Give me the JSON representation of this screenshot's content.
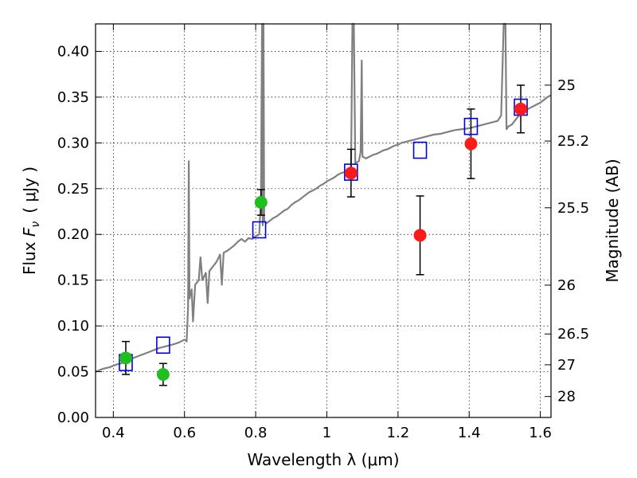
{
  "chart_data": {
    "type": "scatter",
    "xlabel": "Wavelength  λ (μm)",
    "ylabel_left": {
      "prefix": "Flux ",
      "symbol": "F",
      "subscript": "ν",
      "units": "( μJy )"
    },
    "ylabel_right": "Magnitude (AB)",
    "xlim": [
      0.35,
      1.63
    ],
    "ylim": [
      0.0,
      0.43
    ],
    "grid": true,
    "grid_style": "dotted",
    "x_ticks": [
      {
        "value": 0.4,
        "label": "0.4"
      },
      {
        "value": 0.6,
        "label": "0.6"
      },
      {
        "value": 0.8,
        "label": "0.8"
      },
      {
        "value": 1.0,
        "label": "1"
      },
      {
        "value": 1.2,
        "label": "1.2"
      },
      {
        "value": 1.4,
        "label": "1.4"
      },
      {
        "value": 1.6,
        "label": "1.6"
      }
    ],
    "y_ticks": [
      {
        "value": 0.0,
        "label": "0.00"
      },
      {
        "value": 0.05,
        "label": "0.05"
      },
      {
        "value": 0.1,
        "label": "0.10"
      },
      {
        "value": 0.15,
        "label": "0.15"
      },
      {
        "value": 0.2,
        "label": "0.20"
      },
      {
        "value": 0.25,
        "label": "0.25"
      },
      {
        "value": 0.3,
        "label": "0.30"
      },
      {
        "value": 0.35,
        "label": "0.35"
      },
      {
        "value": 0.4,
        "label": "0.40"
      }
    ],
    "right_ticks": [
      {
        "mag": 25,
        "label": "25"
      },
      {
        "mag": 25.2,
        "label": "25.2"
      },
      {
        "mag": 25.5,
        "label": "25.5"
      },
      {
        "mag": 26,
        "label": "26"
      },
      {
        "mag": 26.5,
        "label": "26.5"
      },
      {
        "mag": 27,
        "label": "27"
      },
      {
        "mag": 28,
        "label": "28"
      }
    ],
    "model_spectrum": {
      "name": "model SED",
      "color": "#808080",
      "points": [
        [
          0.35,
          0.05
        ],
        [
          0.37,
          0.053
        ],
        [
          0.39,
          0.055
        ],
        [
          0.41,
          0.058
        ],
        [
          0.43,
          0.06
        ],
        [
          0.45,
          0.064
        ],
        [
          0.47,
          0.067
        ],
        [
          0.49,
          0.07
        ],
        [
          0.51,
          0.073
        ],
        [
          0.53,
          0.076
        ],
        [
          0.55,
          0.078
        ],
        [
          0.57,
          0.08
        ],
        [
          0.585,
          0.082
        ],
        [
          0.6,
          0.085
        ],
        [
          0.606,
          0.083
        ],
        [
          0.61,
          0.12
        ],
        [
          0.612,
          0.28
        ],
        [
          0.614,
          0.13
        ],
        [
          0.62,
          0.14
        ],
        [
          0.624,
          0.105
        ],
        [
          0.63,
          0.145
        ],
        [
          0.64,
          0.15
        ],
        [
          0.645,
          0.175
        ],
        [
          0.65,
          0.15
        ],
        [
          0.66,
          0.158
        ],
        [
          0.665,
          0.125
        ],
        [
          0.67,
          0.16
        ],
        [
          0.68,
          0.165
        ],
        [
          0.69,
          0.17
        ],
        [
          0.7,
          0.178
        ],
        [
          0.705,
          0.145
        ],
        [
          0.71,
          0.18
        ],
        [
          0.72,
          0.182
        ],
        [
          0.73,
          0.185
        ],
        [
          0.74,
          0.188
        ],
        [
          0.75,
          0.192
        ],
        [
          0.76,
          0.195
        ],
        [
          0.77,
          0.192
        ],
        [
          0.78,
          0.196
        ],
        [
          0.79,
          0.195
        ],
        [
          0.8,
          0.198
        ],
        [
          0.81,
          0.2
        ],
        [
          0.815,
          0.245
        ],
        [
          0.818,
          0.43
        ],
        [
          0.82,
          0.21
        ],
        [
          0.822,
          0.43
        ],
        [
          0.824,
          0.215
        ],
        [
          0.83,
          0.212
        ],
        [
          0.84,
          0.215
        ],
        [
          0.85,
          0.218
        ],
        [
          0.86,
          0.22
        ],
        [
          0.87,
          0.223
        ],
        [
          0.88,
          0.226
        ],
        [
          0.89,
          0.228
        ],
        [
          0.9,
          0.232
        ],
        [
          0.91,
          0.235
        ],
        [
          0.92,
          0.237
        ],
        [
          0.93,
          0.24
        ],
        [
          0.94,
          0.243
        ],
        [
          0.95,
          0.246
        ],
        [
          0.96,
          0.248
        ],
        [
          0.97,
          0.25
        ],
        [
          0.98,
          0.253
        ],
        [
          0.99,
          0.255
        ],
        [
          1.0,
          0.258
        ],
        [
          1.01,
          0.26
        ],
        [
          1.02,
          0.262
        ],
        [
          1.03,
          0.265
        ],
        [
          1.04,
          0.267
        ],
        [
          1.05,
          0.268
        ],
        [
          1.06,
          0.27
        ],
        [
          1.068,
          0.272
        ],
        [
          1.072,
          0.43
        ],
        [
          1.076,
          0.43
        ],
        [
          1.08,
          0.278
        ],
        [
          1.09,
          0.28
        ],
        [
          1.095,
          0.29
        ],
        [
          1.098,
          0.39
        ],
        [
          1.1,
          0.285
        ],
        [
          1.11,
          0.283
        ],
        [
          1.12,
          0.285
        ],
        [
          1.13,
          0.287
        ],
        [
          1.14,
          0.288
        ],
        [
          1.15,
          0.29
        ],
        [
          1.16,
          0.292
        ],
        [
          1.17,
          0.293
        ],
        [
          1.18,
          0.295
        ],
        [
          1.19,
          0.297
        ],
        [
          1.2,
          0.298
        ],
        [
          1.21,
          0.3
        ],
        [
          1.22,
          0.301
        ],
        [
          1.23,
          0.302
        ],
        [
          1.24,
          0.303
        ],
        [
          1.25,
          0.304
        ],
        [
          1.26,
          0.305
        ],
        [
          1.28,
          0.307
        ],
        [
          1.3,
          0.309
        ],
        [
          1.32,
          0.31
        ],
        [
          1.34,
          0.312
        ],
        [
          1.36,
          0.314
        ],
        [
          1.38,
          0.315
        ],
        [
          1.4,
          0.316
        ],
        [
          1.42,
          0.318
        ],
        [
          1.44,
          0.32
        ],
        [
          1.46,
          0.322
        ],
        [
          1.48,
          0.324
        ],
        [
          1.49,
          0.33
        ],
        [
          1.497,
          0.43
        ],
        [
          1.502,
          0.43
        ],
        [
          1.505,
          0.315
        ],
        [
          1.51,
          0.318
        ],
        [
          1.52,
          0.32
        ],
        [
          1.53,
          0.325
        ],
        [
          1.54,
          0.33
        ],
        [
          1.55,
          0.333
        ],
        [
          1.56,
          0.336
        ],
        [
          1.57,
          0.338
        ],
        [
          1.58,
          0.34
        ],
        [
          1.59,
          0.342
        ],
        [
          1.6,
          0.344
        ],
        [
          1.61,
          0.347
        ],
        [
          1.62,
          0.35
        ],
        [
          1.63,
          0.352
        ]
      ]
    },
    "series": [
      {
        "name": "green circles",
        "marker": "circle",
        "color": "#1fbf1f",
        "points": [
          {
            "x": 0.435,
            "y": 0.065,
            "err": 0.018
          },
          {
            "x": 0.54,
            "y": 0.047,
            "err": 0.012
          },
          {
            "x": 0.815,
            "y": 0.235,
            "err": 0.014
          }
        ]
      },
      {
        "name": "red circles",
        "marker": "circle",
        "color": "#ff1a1a",
        "points": [
          {
            "x": 1.068,
            "y": 0.267,
            "err": 0.026
          },
          {
            "x": 1.262,
            "y": 0.199,
            "err": 0.043
          },
          {
            "x": 1.405,
            "y": 0.299,
            "err": 0.038
          },
          {
            "x": 1.545,
            "y": 0.337,
            "err": 0.026
          }
        ]
      },
      {
        "name": "blue open squares",
        "marker": "square-open",
        "color": "#0000e6",
        "points": [
          {
            "x": 0.435,
            "y": 0.06
          },
          {
            "x": 0.54,
            "y": 0.079
          },
          {
            "x": 0.81,
            "y": 0.205
          },
          {
            "x": 1.068,
            "y": 0.268
          },
          {
            "x": 1.262,
            "y": 0.292
          },
          {
            "x": 1.405,
            "y": 0.318
          },
          {
            "x": 1.545,
            "y": 0.339
          }
        ]
      }
    ]
  }
}
